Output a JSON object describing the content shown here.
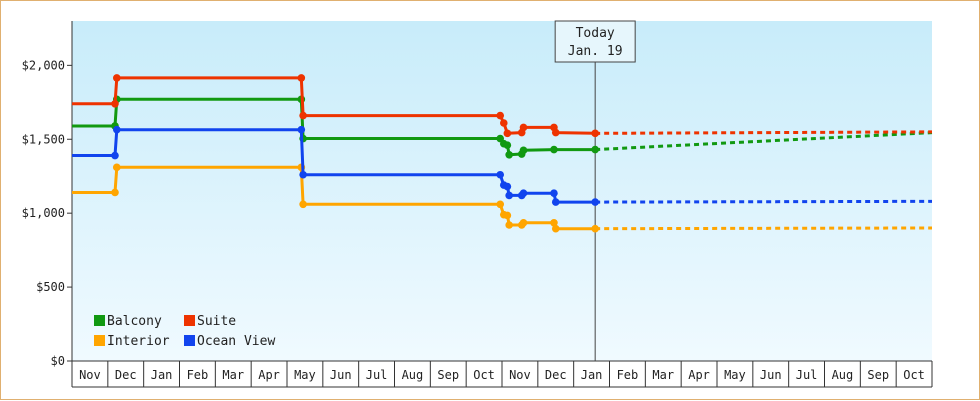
{
  "chart_data": {
    "type": "line",
    "step": true,
    "ylim": [
      0,
      2300
    ],
    "yticks": [
      {
        "value": 0,
        "label": "$0"
      },
      {
        "value": 500,
        "label": "$500"
      },
      {
        "value": 1000,
        "label": "$1,000"
      },
      {
        "value": 1500,
        "label": "$1,500"
      },
      {
        "value": 2000,
        "label": "$2,000"
      }
    ],
    "months": [
      "Nov",
      "Dec",
      "Jan",
      "Feb",
      "Mar",
      "Apr",
      "May",
      "Jun",
      "Jul",
      "Aug",
      "Sep",
      "Oct",
      "Nov",
      "Dec",
      "Jan",
      "Feb",
      "Mar",
      "Apr",
      "May",
      "Jun",
      "Jul",
      "Aug",
      "Sep",
      "Oct"
    ],
    "today": {
      "line1": "Today",
      "line2": "Jan. 19",
      "month_index": 14.6
    },
    "legend": {
      "placement": "bottom-left"
    },
    "series": [
      {
        "name": "Balcony",
        "color": "#119911",
        "points": [
          [
            0,
            1590
          ],
          [
            1.2,
            1590
          ],
          [
            1.25,
            1770
          ],
          [
            6.4,
            1770
          ],
          [
            6.45,
            1505
          ],
          [
            11.95,
            1505
          ],
          [
            12.05,
            1470
          ],
          [
            12.15,
            1460
          ],
          [
            12.2,
            1395
          ],
          [
            12.55,
            1400
          ],
          [
            12.6,
            1425
          ],
          [
            13.45,
            1430
          ],
          [
            14.6,
            1430
          ]
        ],
        "projection": [
          [
            14.6,
            1430
          ],
          [
            24,
            1545
          ]
        ]
      },
      {
        "name": "Suite",
        "color": "#ee3300",
        "points": [
          [
            0,
            1740
          ],
          [
            1.2,
            1740
          ],
          [
            1.25,
            1915
          ],
          [
            6.4,
            1915
          ],
          [
            6.45,
            1660
          ],
          [
            11.95,
            1660
          ],
          [
            12.05,
            1610
          ],
          [
            12.15,
            1540
          ],
          [
            12.55,
            1545
          ],
          [
            12.6,
            1580
          ],
          [
            13.45,
            1580
          ],
          [
            13.5,
            1545
          ],
          [
            14.6,
            1540
          ]
        ],
        "projection": [
          [
            14.6,
            1540
          ],
          [
            24,
            1550
          ]
        ]
      },
      {
        "name": "Interior",
        "color": "#ffa500",
        "points": [
          [
            0,
            1140
          ],
          [
            1.2,
            1140
          ],
          [
            1.25,
            1310
          ],
          [
            6.4,
            1310
          ],
          [
            6.45,
            1060
          ],
          [
            11.95,
            1060
          ],
          [
            12.05,
            990
          ],
          [
            12.15,
            985
          ],
          [
            12.2,
            920
          ],
          [
            12.55,
            920
          ],
          [
            12.6,
            935
          ],
          [
            13.45,
            935
          ],
          [
            13.5,
            895
          ],
          [
            14.6,
            895
          ]
        ],
        "projection": [
          [
            14.6,
            895
          ],
          [
            24,
            900
          ]
        ]
      },
      {
        "name": "Ocean View",
        "color": "#1144ee",
        "points": [
          [
            0,
            1390
          ],
          [
            1.2,
            1390
          ],
          [
            1.25,
            1565
          ],
          [
            6.4,
            1565
          ],
          [
            6.45,
            1260
          ],
          [
            11.95,
            1260
          ],
          [
            12.05,
            1190
          ],
          [
            12.15,
            1180
          ],
          [
            12.2,
            1120
          ],
          [
            12.55,
            1120
          ],
          [
            12.6,
            1135
          ],
          [
            13.45,
            1135
          ],
          [
            13.5,
            1075
          ],
          [
            14.6,
            1075
          ]
        ],
        "projection": [
          [
            14.6,
            1075
          ],
          [
            24,
            1080
          ]
        ]
      }
    ]
  }
}
